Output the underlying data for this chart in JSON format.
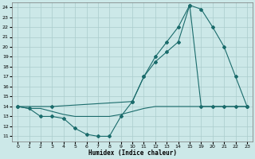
{
  "xlabel": "Humidex (Indice chaleur)",
  "bg_color": "#cce8e8",
  "grid_color": "#aacccc",
  "line_color": "#1a6b6b",
  "xlabels": [
    "0",
    "1",
    "2",
    "3",
    "4",
    "5",
    "6",
    "7",
    "8",
    "9",
    "10",
    "11",
    "12",
    "13",
    "14",
    "15",
    "19",
    "20",
    "21",
    "22",
    "23"
  ],
  "xvals": [
    0,
    1,
    2,
    3,
    4,
    5,
    6,
    7,
    8,
    9,
    10,
    11,
    12,
    13,
    14,
    15,
    16,
    17,
    18,
    19,
    20
  ],
  "ylim": [
    10.5,
    24.5
  ],
  "yticks": [
    11,
    12,
    13,
    14,
    15,
    16,
    17,
    18,
    19,
    20,
    21,
    22,
    23,
    24
  ],
  "line1_xi": [
    0,
    1,
    2,
    3,
    4,
    5,
    6,
    7,
    8,
    9,
    10,
    11,
    12,
    13,
    14,
    15,
    16,
    17,
    18,
    19,
    20
  ],
  "line1_y": [
    14.0,
    13.8,
    13.0,
    13.0,
    12.8,
    11.8,
    11.2,
    11.0,
    11.0,
    13.0,
    14.5,
    17.0,
    18.5,
    19.5,
    20.5,
    24.2,
    14.0,
    14.0,
    14.0,
    14.0,
    14.0
  ],
  "line2_xi": [
    0,
    1,
    2,
    3,
    4,
    5,
    6,
    7,
    8,
    9,
    10,
    11,
    12,
    13,
    14,
    15,
    16,
    17,
    18,
    19,
    20
  ],
  "line2_y": [
    14.0,
    13.8,
    13.8,
    13.5,
    13.2,
    13.0,
    13.0,
    13.0,
    13.0,
    13.2,
    13.5,
    13.8,
    14.0,
    14.0,
    14.0,
    14.0,
    14.0,
    14.0,
    14.0,
    14.0,
    14.0
  ],
  "line3_xi": [
    0,
    3,
    10,
    11,
    12,
    13,
    14,
    15,
    16,
    17,
    18,
    19,
    20
  ],
  "line3_y": [
    14.0,
    14.0,
    14.5,
    17.0,
    19.0,
    20.5,
    22.0,
    24.2,
    23.8,
    22.0,
    20.0,
    17.0,
    14.0
  ]
}
